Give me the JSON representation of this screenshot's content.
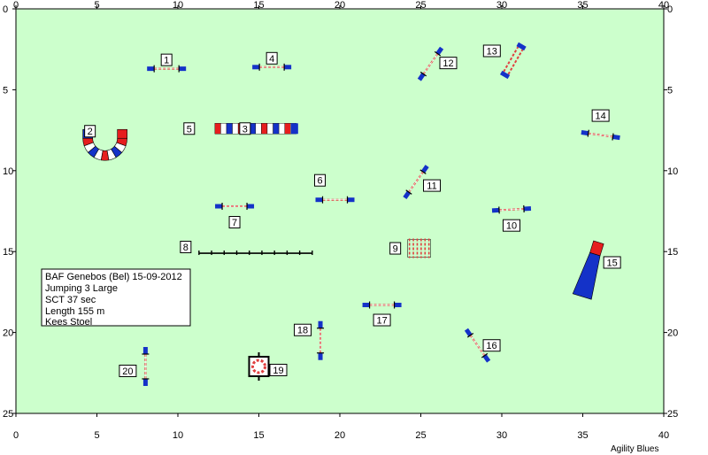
{
  "field": {
    "width_m": 40,
    "height_m": 25,
    "background": "#ccffcc",
    "border": "#000000"
  },
  "axes": {
    "x_ticks": [
      0,
      5,
      10,
      15,
      20,
      25,
      30,
      35,
      40
    ],
    "y_ticks": [
      0,
      5,
      10,
      15,
      20,
      25
    ]
  },
  "info": {
    "lines": [
      "BAF Genebos (Bel) 15-09-2012",
      "Jumping 3 Large",
      "SCT 37 sec",
      "Length 155 m",
      "Kees Stoel"
    ]
  },
  "brand": "Agility Blues",
  "colors": {
    "blue": "#1432c8",
    "red": "#e61e1e",
    "white": "#ffffff",
    "pole_red": "#e04040"
  },
  "obstacles": [
    {
      "type": "jump",
      "label": "1",
      "x": 9.3,
      "y": 3.7,
      "angle": 0
    },
    {
      "type": "tunnel",
      "label": "2",
      "x": 5.5,
      "y": 8.0
    },
    {
      "type": "wall",
      "label": "3",
      "x": 14.8,
      "y": 7.4
    },
    {
      "type": "jump",
      "label": "4",
      "x": 15.8,
      "y": 3.6,
      "angle": 0
    },
    {
      "type": "text",
      "label": "5",
      "x": 10.7,
      "y": 7.4
    },
    {
      "type": "jump",
      "label": "6",
      "x": 19.7,
      "y": 11.8,
      "angle": 0
    },
    {
      "type": "jump",
      "label": "7",
      "x": 13.5,
      "y": 12.2,
      "angle": 0
    },
    {
      "type": "walk",
      "label": "8",
      "x": 14.8,
      "y": 15.1
    },
    {
      "type": "weave",
      "label": "9",
      "x": 24.9,
      "y": 14.8
    },
    {
      "type": "jump",
      "label": "10",
      "x": 30.6,
      "y": 12.4,
      "angle": -3
    },
    {
      "type": "jump",
      "label": "11",
      "x": 24.7,
      "y": 10.7,
      "angle": -55
    },
    {
      "type": "jump",
      "label": "12",
      "x": 25.6,
      "y": 3.4,
      "angle": -55
    },
    {
      "type": "double",
      "label": "13",
      "x": 30.7,
      "y": 3.2,
      "angle": -60
    },
    {
      "type": "jump",
      "label": "14",
      "x": 36.1,
      "y": 7.8,
      "angle": 8
    },
    {
      "type": "chute",
      "label": "15",
      "x": 35.5,
      "y": 16.0
    },
    {
      "type": "jump",
      "label": "16",
      "x": 28.5,
      "y": 20.8,
      "angle": 55
    },
    {
      "type": "jump",
      "label": "17",
      "x": 22.6,
      "y": 18.3,
      "angle": 0
    },
    {
      "type": "jump",
      "label": "18",
      "x": 18.8,
      "y": 20.5,
      "angle": 90
    },
    {
      "type": "tyre",
      "label": "19",
      "x": 15.0,
      "y": 22.1
    },
    {
      "type": "jump",
      "label": "20",
      "x": 8.0,
      "y": 22.1,
      "angle": 90
    }
  ]
}
